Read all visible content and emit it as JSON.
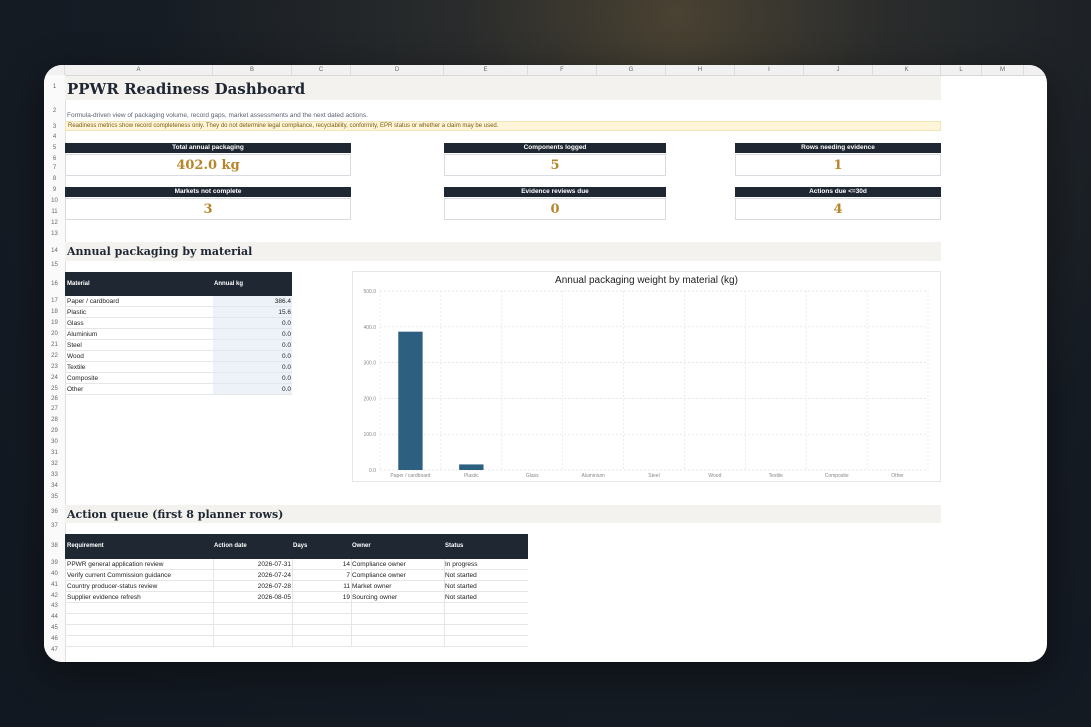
{
  "columns": [
    "A",
    "B",
    "C",
    "D",
    "E",
    "F",
    "G",
    "H",
    "I",
    "J",
    "K",
    "L",
    "M"
  ],
  "title": "PPWR Readiness Dashboard",
  "subtitle": "Formula-driven view of packaging volume, record gaps, market assessments and the next dated actions.",
  "notice": "Readiness metrics show record completeness only. They do not determine legal compliance, recyclability, conformity, EPR status or whether a claim may be used.",
  "kpis": [
    {
      "label": "Total annual packaging",
      "value": "402.0 kg"
    },
    {
      "label": "Components logged",
      "value": "5"
    },
    {
      "label": "Rows needing evidence",
      "value": "1"
    },
    {
      "label": "Markets not complete",
      "value": "3"
    },
    {
      "label": "Evidence reviews due",
      "value": "0"
    },
    {
      "label": "Actions due <=30d",
      "value": "4"
    }
  ],
  "material_section": {
    "title": "Annual packaging by material",
    "headers": [
      "Material",
      "Annual kg"
    ],
    "rows": [
      {
        "material": "Paper / cardboard",
        "kg": "386.4"
      },
      {
        "material": "Plastic",
        "kg": "15.6"
      },
      {
        "material": "Glass",
        "kg": "0.0"
      },
      {
        "material": "Aluminium",
        "kg": "0.0"
      },
      {
        "material": "Steel",
        "kg": "0.0"
      },
      {
        "material": "Wood",
        "kg": "0.0"
      },
      {
        "material": "Textile",
        "kg": "0.0"
      },
      {
        "material": "Composite",
        "kg": "0.0"
      },
      {
        "material": "Other",
        "kg": "0.0"
      }
    ]
  },
  "chart_data": {
    "type": "bar",
    "title": "Annual packaging weight by material (kg)",
    "categories": [
      "Paper / cardboard",
      "Plastic",
      "Glass",
      "Aluminium",
      "Steel",
      "Wood",
      "Textile",
      "Composite",
      "Other"
    ],
    "values": [
      386.4,
      15.6,
      0,
      0,
      0,
      0,
      0,
      0,
      0
    ],
    "ylim": [
      0,
      500
    ],
    "yticks": [
      "0.0",
      "100.0",
      "200.0",
      "300.0",
      "400.0",
      "500.0"
    ],
    "grid": true,
    "color": "#2d5f80"
  },
  "action_section": {
    "title": "Action queue (first 8 planner rows)",
    "headers": [
      "Requirement",
      "Action date",
      "Days",
      "Owner",
      "Status"
    ],
    "rows": [
      {
        "requirement": "PPWR general application review",
        "date": "2026-07-31",
        "days": "14",
        "owner": "Compliance owner",
        "status": "In progress"
      },
      {
        "requirement": "Verify current Commission guidance",
        "date": "2026-07-24",
        "days": "7",
        "owner": "Compliance owner",
        "status": "Not started"
      },
      {
        "requirement": "Country producer-status review",
        "date": "2026-07-28",
        "days": "11",
        "owner": "Market owner",
        "status": "Not started"
      },
      {
        "requirement": "Supplier evidence refresh",
        "date": "2026-08-05",
        "days": "19",
        "owner": "Sourcing owner",
        "status": "Not started"
      }
    ]
  },
  "colors": {
    "header_dark": "#1f2733",
    "kpi_gold": "#b8862a",
    "notice_bg": "#fff6d9",
    "bar": "#2d5f80"
  }
}
